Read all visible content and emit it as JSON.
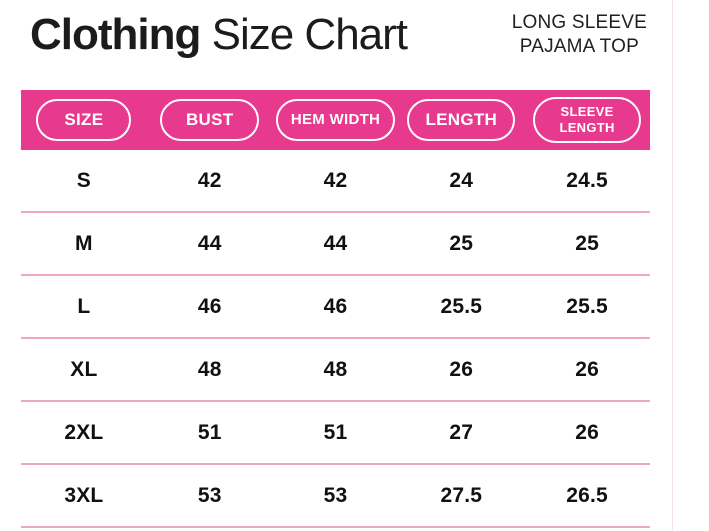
{
  "header": {
    "title_bold": "Clothing",
    "title_rest": " Size Chart",
    "subtitle_line1": "LONG SLEEVE",
    "subtitle_line2": "PAJAMA TOP"
  },
  "table": {
    "columns": [
      "SIZE",
      "BUST",
      "HEM WIDTH",
      "LENGTH",
      "SLEEVE LENGTH"
    ],
    "rows": [
      {
        "size": "S",
        "values": [
          "42",
          "42",
          "24",
          "24.5"
        ]
      },
      {
        "size": "M",
        "values": [
          "44",
          "44",
          "25",
          "25"
        ]
      },
      {
        "size": "L",
        "values": [
          "46",
          "46",
          "25.5",
          "25.5"
        ]
      },
      {
        "size": "XL",
        "values": [
          "48",
          "48",
          "26",
          "26"
        ]
      },
      {
        "size": "2XL",
        "values": [
          "51",
          "51",
          "27",
          "26"
        ]
      },
      {
        "size": "3XL",
        "values": [
          "53",
          "53",
          "27.5",
          "26.5"
        ]
      }
    ]
  },
  "colors": {
    "accent_pink": "#e7398e",
    "divider_pink": "#f0a6c5",
    "text_dark": "#1c1c1e",
    "pill_border": "#ffffff"
  },
  "chart_data": {
    "type": "table",
    "title": "Clothing Size Chart",
    "subtitle": "LONG SLEEVE PAJAMA TOP",
    "columns": [
      "SIZE",
      "BUST",
      "HEM WIDTH",
      "LENGTH",
      "SLEEVE LENGTH"
    ],
    "rows": [
      [
        "S",
        42,
        42,
        24,
        24.5
      ],
      [
        "M",
        44,
        44,
        25,
        25
      ],
      [
        "L",
        46,
        46,
        25.5,
        25.5
      ],
      [
        "XL",
        48,
        48,
        26,
        26
      ],
      [
        "2XL",
        51,
        51,
        27,
        26
      ],
      [
        "3XL",
        53,
        53,
        27.5,
        26.5
      ]
    ]
  }
}
